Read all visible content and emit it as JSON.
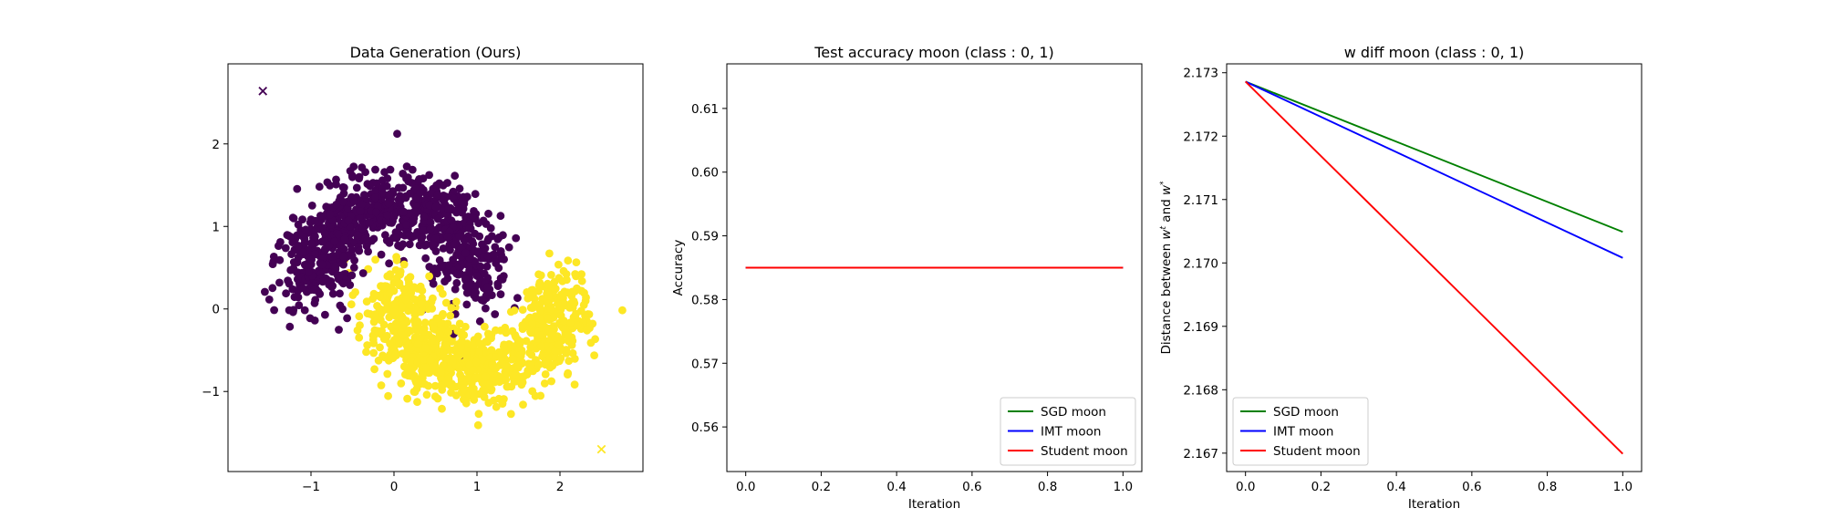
{
  "chart_data": [
    {
      "type": "scatter",
      "title": "Data Generation (Ours)",
      "xlabel": "",
      "ylabel": "",
      "xlim": [
        -2.0,
        3.0
      ],
      "ylim": [
        -1.97,
        2.97
      ],
      "xticks": [
        -1,
        0,
        1,
        2
      ],
      "yticks": [
        -1,
        0,
        1,
        2
      ],
      "grid": false,
      "colors": {
        "class0": "#440154",
        "class1": "#fde725"
      },
      "series": [
        {
          "class": 0,
          "marker": "o",
          "count": 950,
          "shape": "upper moon",
          "center_x": 0.0,
          "center_y": 0.25,
          "radius": 1.0
        },
        {
          "class": 1,
          "marker": "o",
          "count": 950,
          "shape": "lower moon",
          "center_x": 1.0,
          "center_y": 0.25,
          "radius": 1.0
        }
      ],
      "markers_x": [
        {
          "class": 0,
          "x": -1.58,
          "y": 2.64
        },
        {
          "class": 1,
          "x": 2.5,
          "y": -1.7
        }
      ]
    },
    {
      "type": "line",
      "title": "Test accuracy moon (class : 0, 1)",
      "xlabel": "Iteration",
      "ylabel": "Accuracy",
      "xlim": [
        -0.05,
        1.05
      ],
      "ylim": [
        0.553,
        0.617
      ],
      "xticks": [
        "0.0",
        "0.2",
        "0.4",
        "0.6",
        "0.8",
        "1.0"
      ],
      "yticks": [
        "0.56",
        "0.57",
        "0.58",
        "0.59",
        "0.60",
        "0.61"
      ],
      "grid": false,
      "legend_position": "lower right",
      "x": [
        0.0,
        1.0
      ],
      "series": [
        {
          "name": "SGD moon",
          "color": "#008000",
          "values": [
            0.585,
            0.585
          ]
        },
        {
          "name": "IMT moon",
          "color": "#0000ff",
          "values": [
            0.585,
            0.585
          ]
        },
        {
          "name": "Student moon",
          "color": "#ff0000",
          "values": [
            0.585,
            0.585
          ]
        }
      ]
    },
    {
      "type": "line",
      "title": "w diff moon (class : 0, 1)",
      "xlabel": "Iteration",
      "ylabel_parts": {
        "pre": "Distance between ",
        "w1": "w",
        "sup1": "t",
        "mid": " and ",
        "w2": "w",
        "sup2": "*"
      },
      "xlim": [
        -0.05,
        1.05
      ],
      "ylim": [
        2.16671,
        2.17314
      ],
      "xticks": [
        "0.0",
        "0.2",
        "0.4",
        "0.6",
        "0.8",
        "1.0"
      ],
      "yticks": [
        "2.167",
        "2.168",
        "2.169",
        "2.170",
        "2.171",
        "2.172",
        "2.173"
      ],
      "grid": false,
      "legend_position": "lower left",
      "x": [
        0.0,
        1.0
      ],
      "series": [
        {
          "name": "SGD moon",
          "color": "#008000",
          "values": [
            2.17286,
            2.17049
          ]
        },
        {
          "name": "IMT moon",
          "color": "#0000ff",
          "values": [
            2.17286,
            2.17008
          ]
        },
        {
          "name": "Student moon",
          "color": "#ff0000",
          "values": [
            2.17286,
            2.16699
          ]
        }
      ]
    }
  ]
}
